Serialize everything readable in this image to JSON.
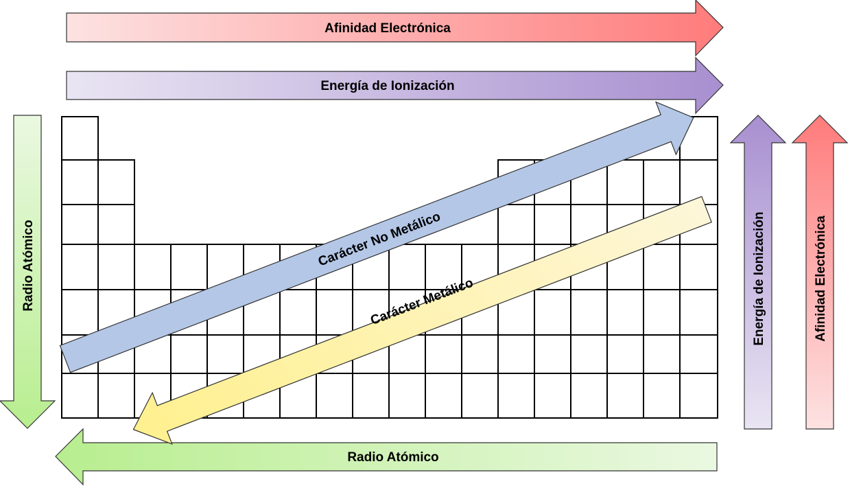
{
  "arrows": {
    "top_affinity": {
      "label": "Afinidad Electrónica"
    },
    "top_ionization": {
      "label": "Energía de Ionización"
    },
    "left_radius": {
      "label": "Radio Atómico"
    },
    "bottom_radius": {
      "label": "Radio Atómico"
    },
    "right_ionization": {
      "label": "Energía de Ionización"
    },
    "right_affinity": {
      "label": "Afinidad Electrónica"
    },
    "diag_nonmetallic": {
      "label": "Carácter No Metálico"
    },
    "diag_metallic": {
      "label": "Carácter Metálico"
    }
  },
  "colors": {
    "affinity_strong": "#ff7b7b",
    "affinity_light": "#fde2e2",
    "ionization_strong": "#a88fd0",
    "ionization_light": "#e9e5f3",
    "radius_strong": "#b8ee8f",
    "radius_light": "#eaf8e1",
    "nonmetallic": "#b4c7e7",
    "metallic_strong": "#fff08c",
    "metallic_light": "#fdf6d9"
  },
  "periodic_table": {
    "groups": 18,
    "periods": 7
  }
}
